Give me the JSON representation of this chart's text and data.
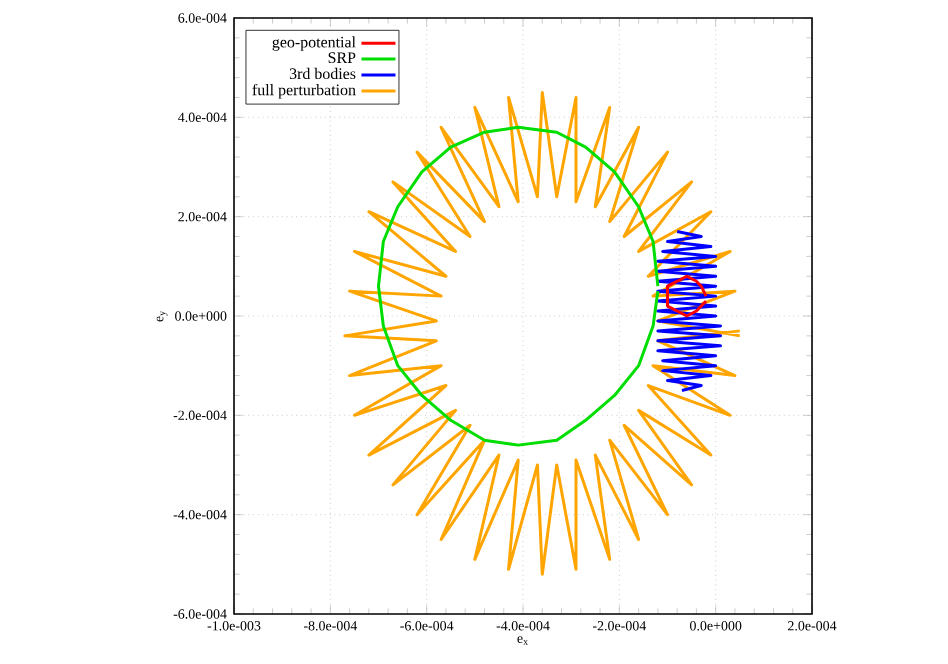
{
  "chart_data": {
    "type": "line",
    "xlabel": "e$_{x}$",
    "ylabel": "e$_{y}$",
    "xlim": [
      -0.001,
      0.0002
    ],
    "ylim": [
      -0.0006,
      0.0006
    ],
    "xticks": [
      {
        "value": -0.001,
        "label": "-1.0e-003"
      },
      {
        "value": -0.0008,
        "label": "-8.0e-004"
      },
      {
        "value": -0.0006,
        "label": "-6.0e-004"
      },
      {
        "value": -0.0004,
        "label": "-4.0e-004"
      },
      {
        "value": -0.0002,
        "label": "-2.0e-004"
      },
      {
        "value": 0,
        "label": "0.0e+000"
      },
      {
        "value": 0.0002,
        "label": "2.0e-004"
      }
    ],
    "yticks": [
      {
        "value": -0.0006,
        "label": "-6.0e-004"
      },
      {
        "value": -0.0004,
        "label": "-4.0e-004"
      },
      {
        "value": -0.0002,
        "label": "-2.0e-004"
      },
      {
        "value": 0,
        "label": "0.0e+000"
      },
      {
        "value": 0.0002,
        "label": "2.0e-004"
      },
      {
        "value": 0.0004,
        "label": "4.0e-004"
      },
      {
        "value": 0.0006,
        "label": "6.0e-004"
      }
    ],
    "grid": true,
    "legend": "top left",
    "series": [
      {
        "name": "geo-potential",
        "color": "#ff0000",
        "x": [
          -2e-05,
          -3e-05,
          -4e-05,
          -6e-05,
          -8e-05,
          -0.0001,
          -0.0001,
          -0.0001,
          -8e-05,
          -6e-05,
          -4e-05,
          -3e-05,
          -2e-05
        ],
        "values": [
          4e-05,
          6e-05,
          7e-05,
          8e-05,
          7e-05,
          6e-05,
          4e-05,
          2e-05,
          1e-05,
          0.0,
          1e-05,
          2e-05,
          3e-05
        ]
      },
      {
        "name": "SRP",
        "color": "#00dd00",
        "x": [
          -0.00012,
          -0.00013,
          -0.00016,
          -0.00021,
          -0.00027,
          -0.00033,
          -0.00041,
          -0.00048,
          -0.00055,
          -0.00061,
          -0.00066,
          -0.00069,
          -0.0007,
          -0.00069,
          -0.00066,
          -0.00061,
          -0.00055,
          -0.00048,
          -0.00041,
          -0.00033,
          -0.00027,
          -0.00021,
          -0.00016,
          -0.00013,
          -0.00012
        ],
        "values": [
          6e-05,
          0.00015,
          0.00022,
          0.00029,
          0.00034,
          0.00037,
          0.00038,
          0.00037,
          0.00034,
          0.00029,
          0.00022,
          0.00015,
          6e-05,
          -2e-05,
          -0.0001,
          -0.00016,
          -0.00021,
          -0.00025,
          -0.00026,
          -0.00025,
          -0.00021,
          -0.00016,
          -0.0001,
          -2e-05,
          5e-05
        ]
      },
      {
        "name": "3rd bodies",
        "color": "#0000ff",
        "x": [
          -8e-05,
          -3e-05,
          -0.0001,
          -1e-05,
          -0.00011,
          0.0,
          -0.00012,
          0.0,
          -0.00012,
          0.0,
          -0.00012,
          0.0,
          -0.00012,
          0.0,
          -0.00012,
          0.0,
          -0.00012,
          0.0,
          -0.00012,
          1e-05,
          -0.00012,
          1e-05,
          -0.00012,
          1e-05,
          -0.00012,
          0.0,
          -0.00011,
          0.0,
          -0.00011,
          -1e-05,
          -0.0001,
          -3e-05,
          -7e-05
        ],
        "values": [
          0.00017,
          0.00016,
          0.00015,
          0.00014,
          0.00013,
          0.00012,
          0.00011,
          0.0001,
          9e-05,
          8e-05,
          7e-05,
          6e-05,
          5e-05,
          4e-05,
          3e-05,
          2e-05,
          1e-05,
          0.0,
          -1e-05,
          -2e-05,
          -3e-05,
          -4e-05,
          -5e-05,
          -6e-05,
          -7e-05,
          -8e-05,
          -9e-05,
          -0.0001,
          -0.00011,
          -0.00012,
          -0.00013,
          -0.00014,
          -0.00015
        ]
      },
      {
        "name": "full perturbation",
        "color": "#ffa500",
        "x": [
          5e-05,
          -0.00012,
          4e-05,
          -0.00013,
          3e-05,
          -0.00014,
          -1e-05,
          -0.00016,
          -5e-05,
          -0.00019,
          -0.0001,
          -0.00022,
          -0.00016,
          -0.00025,
          -0.00022,
          -0.00029,
          -0.00029,
          -0.00033,
          -0.00036,
          -0.00037,
          -0.00043,
          -0.00041,
          -0.0005,
          -0.00045,
          -0.00057,
          -0.00048,
          -0.00062,
          -0.00051,
          -0.00067,
          -0.00054,
          -0.00072,
          -0.00056,
          -0.00075,
          -0.00057,
          -0.00076,
          -0.00058,
          -0.00077,
          -0.00058,
          -0.00076,
          -0.00057,
          -0.00075,
          -0.00056,
          -0.00072,
          -0.00054,
          -0.00067,
          -0.00051,
          -0.00062,
          -0.00048,
          -0.00057,
          -0.00045,
          -0.0005,
          -0.00041,
          -0.00043,
          -0.00037,
          -0.00036,
          -0.00033,
          -0.00029,
          -0.00029,
          -0.00022,
          -0.00025,
          -0.00016,
          -0.00022,
          -0.0001,
          -0.00019,
          -5e-05,
          -0.00016,
          -1e-05,
          -0.00014,
          3e-05,
          -0.00013,
          4e-05,
          -0.00012,
          5e-05
        ],
        "values": [
          -4e-05,
          -1e-05,
          5e-05,
          4e-05,
          0.00013,
          8e-05,
          0.00021,
          0.00013,
          0.00027,
          0.00016,
          0.00033,
          0.00019,
          0.00038,
          0.00022,
          0.00042,
          0.00023,
          0.00044,
          0.00024,
          0.00045,
          0.00024,
          0.00044,
          0.00023,
          0.00042,
          0.00022,
          0.00038,
          0.00019,
          0.00033,
          0.00016,
          0.00027,
          0.00013,
          0.00021,
          8e-05,
          0.00013,
          4e-05,
          5e-05,
          -1e-05,
          -4e-05,
          -5e-05,
          -0.00012,
          -0.0001,
          -0.0002,
          -0.00014,
          -0.00028,
          -0.00019,
          -0.00034,
          -0.00022,
          -0.0004,
          -0.00025,
          -0.00045,
          -0.00028,
          -0.00049,
          -0.00029,
          -0.00051,
          -0.0003,
          -0.00052,
          -0.0003,
          -0.00051,
          -0.00029,
          -0.00049,
          -0.00028,
          -0.00045,
          -0.00025,
          -0.0004,
          -0.00022,
          -0.00034,
          -0.00019,
          -0.00028,
          -0.00014,
          -0.0002,
          -0.0001,
          -0.00012,
          -5e-05,
          -3e-05
        ]
      }
    ]
  }
}
